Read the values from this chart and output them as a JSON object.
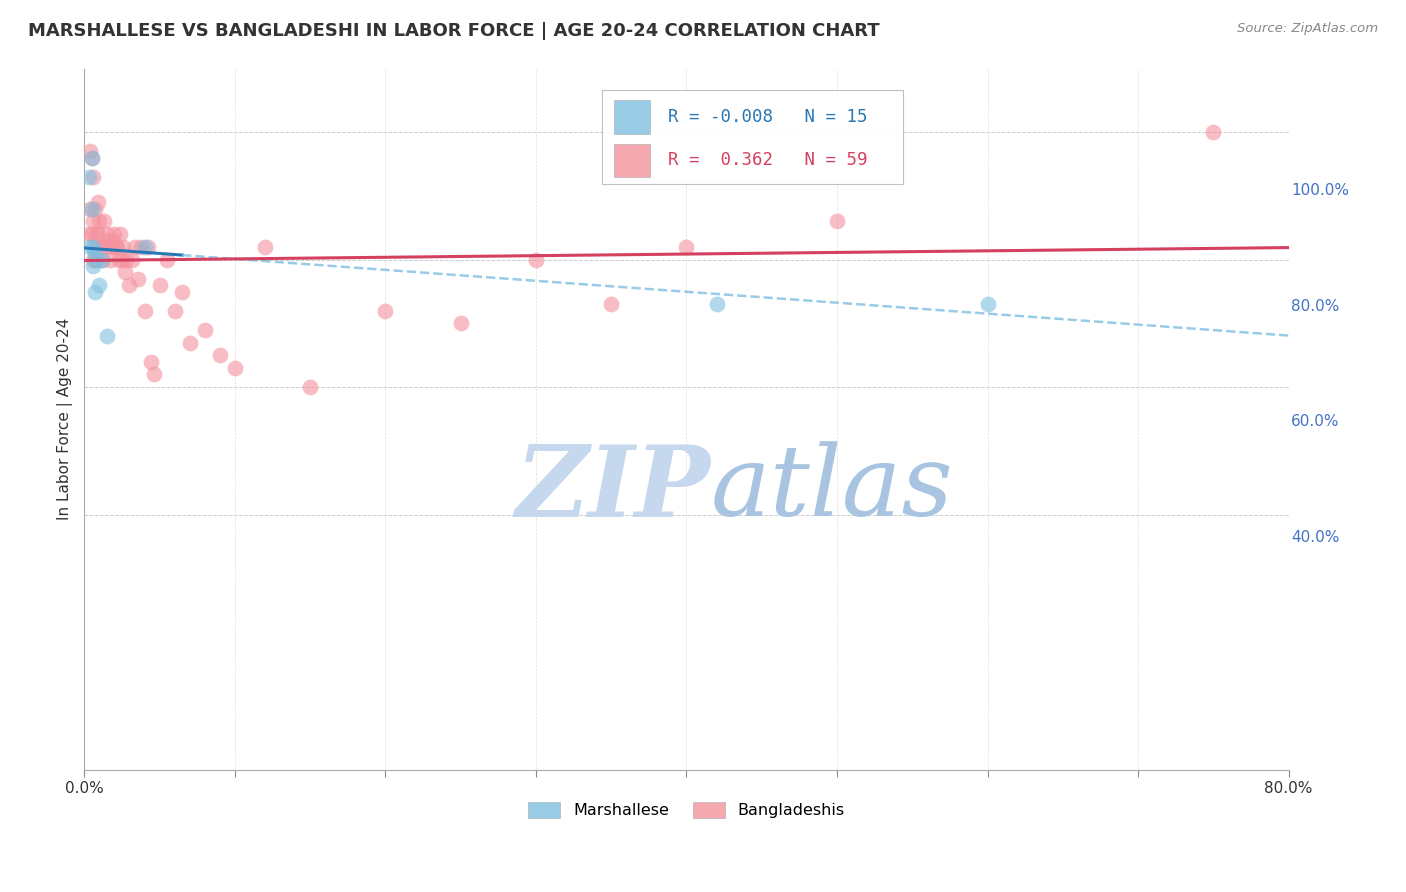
{
  "title": "MARSHALLESE VS BANGLADESHI IN LABOR FORCE | AGE 20-24 CORRELATION CHART",
  "source": "Source: ZipAtlas.com",
  "ylabel": "In Labor Force | Age 20-24",
  "xlim": [
    0.0,
    0.8
  ],
  "ylim": [
    0.0,
    1.1
  ],
  "marshallese_color": "#7fbfdf",
  "bangladeshi_color": "#f4929e",
  "marshallese_R": -0.008,
  "marshallese_N": 15,
  "bangladeshi_R": 0.362,
  "bangladeshi_N": 59,
  "watermark": "ZIPatlas",
  "watermark_zip_color": "#c8daf0",
  "watermark_atlas_color": "#a0b8d8",
  "legend_label_1": "Marshallese",
  "legend_label_2": "Bangladeshis",
  "marshallese_x": [
    0.003,
    0.004,
    0.005,
    0.005,
    0.006,
    0.006,
    0.007,
    0.007,
    0.008,
    0.01,
    0.012,
    0.015,
    0.04,
    0.42,
    0.6
  ],
  "marshallese_y": [
    0.93,
    0.82,
    0.96,
    0.88,
    0.82,
    0.79,
    0.81,
    0.75,
    0.8,
    0.76,
    0.8,
    0.68,
    0.82,
    0.73,
    0.73
  ],
  "bangladeshi_x": [
    0.003,
    0.004,
    0.004,
    0.005,
    0.005,
    0.006,
    0.006,
    0.006,
    0.007,
    0.007,
    0.008,
    0.008,
    0.009,
    0.009,
    0.01,
    0.011,
    0.012,
    0.013,
    0.014,
    0.015,
    0.016,
    0.017,
    0.018,
    0.019,
    0.02,
    0.021,
    0.022,
    0.023,
    0.024,
    0.025,
    0.026,
    0.027,
    0.028,
    0.03,
    0.032,
    0.034,
    0.036,
    0.038,
    0.04,
    0.042,
    0.044,
    0.046,
    0.05,
    0.055,
    0.06,
    0.065,
    0.07,
    0.08,
    0.09,
    0.1,
    0.12,
    0.15,
    0.2,
    0.25,
    0.3,
    0.35,
    0.4,
    0.5,
    0.75
  ],
  "bangladeshi_y": [
    0.84,
    0.97,
    0.88,
    0.96,
    0.84,
    0.8,
    0.86,
    0.93,
    0.88,
    0.8,
    0.84,
    0.82,
    0.89,
    0.84,
    0.86,
    0.82,
    0.8,
    0.86,
    0.82,
    0.84,
    0.83,
    0.8,
    0.82,
    0.83,
    0.84,
    0.82,
    0.82,
    0.8,
    0.84,
    0.8,
    0.82,
    0.78,
    0.8,
    0.76,
    0.8,
    0.82,
    0.77,
    0.82,
    0.72,
    0.82,
    0.64,
    0.62,
    0.76,
    0.8,
    0.72,
    0.75,
    0.67,
    0.69,
    0.65,
    0.63,
    0.82,
    0.6,
    0.72,
    0.7,
    0.8,
    0.73,
    0.82,
    0.86,
    1.0
  ],
  "right_ytick_vals": [
    0.4,
    0.6,
    0.8,
    1.0
  ],
  "right_ytick_labels": [
    "40.0%",
    "60.0%",
    "80.0%",
    "100.0%"
  ],
  "xtick_vals": [
    0.0,
    0.1,
    0.2,
    0.3,
    0.4,
    0.5,
    0.6,
    0.7,
    0.8
  ],
  "xtick_labels": [
    "0.0%",
    "",
    "",
    "",
    "",
    "",
    "",
    "",
    "80.0%"
  ],
  "marsh_line_solid_end": 0.065,
  "marsh_line_dash_start": 0.065
}
